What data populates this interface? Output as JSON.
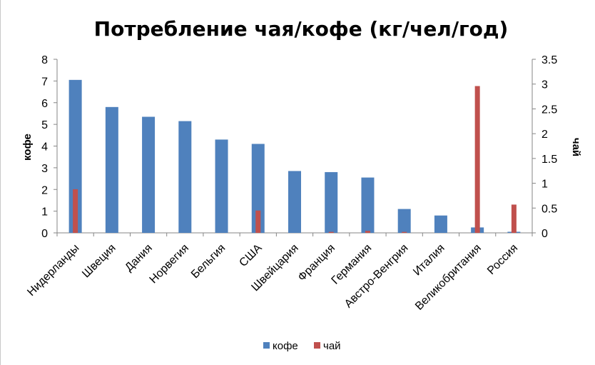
{
  "chart_data": {
    "type": "bar",
    "title": "Потребление чая/кофе (кг/чел/год)",
    "categories": [
      "Нидерланды",
      "Швеция",
      "Дания",
      "Норвегия",
      "Бельгия",
      "США",
      "Швейцария",
      "Франция",
      "Германия",
      "Австро-Венгрия",
      "Италия",
      "Великобритания",
      "Россия"
    ],
    "series": [
      {
        "name": "кофе",
        "axis": "left",
        "color": "#4f81bd",
        "values": [
          7.05,
          5.8,
          5.35,
          5.15,
          4.3,
          4.1,
          2.85,
          2.8,
          2.55,
          1.1,
          0.8,
          0.25,
          0.05
        ]
      },
      {
        "name": "чай",
        "axis": "right",
        "color": "#c0504d",
        "values": [
          0.88,
          0.0,
          0.0,
          0.0,
          0.0,
          0.45,
          0.0,
          0.02,
          0.04,
          0.02,
          0.0,
          2.96,
          0.57
        ]
      }
    ],
    "ylabel_left": "кофе",
    "ylabel_right": "чай",
    "ylim_left": [
      0,
      8
    ],
    "yticks_left": [
      "0",
      "1",
      "2",
      "3",
      "4",
      "5",
      "6",
      "7",
      "8"
    ],
    "ylim_right": [
      0,
      3.5
    ],
    "yticks_right": [
      "0",
      "0.5",
      "1",
      "1.5",
      "2",
      "2.5",
      "3",
      "3.5"
    ],
    "grid": false,
    "legend_position": "bottom"
  }
}
